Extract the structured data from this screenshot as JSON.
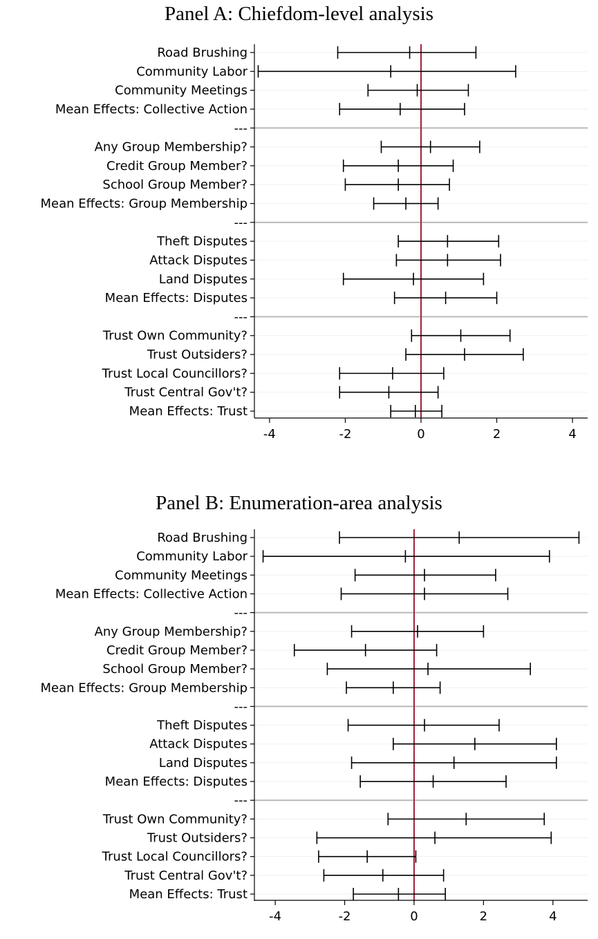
{
  "chart_data": [
    {
      "type": "errorbar",
      "title": "Panel A: Chiefdom-level analysis",
      "xlim": [
        -4.4,
        4.4
      ],
      "xticks": [
        "-4",
        "-2",
        "0",
        "2",
        "4"
      ],
      "xtick_values": [
        -4,
        -2,
        0,
        2,
        4
      ],
      "reference_line_x": 0,
      "reference_line_color": "#a0203c",
      "grid": true,
      "rows": [
        {
          "label": "Road Brushing",
          "estimate": -0.3,
          "low": -2.2,
          "high": 1.45
        },
        {
          "label": "Community Labor",
          "estimate": -0.8,
          "low": -4.3,
          "high": 2.5
        },
        {
          "label": "Community Meetings",
          "estimate": -0.1,
          "low": -1.4,
          "high": 1.25
        },
        {
          "label": "Mean Effects: Collective Action",
          "estimate": -0.55,
          "low": -2.15,
          "high": 1.15
        },
        {
          "label": "---",
          "separator": true
        },
        {
          "label": "Any Group Membership?",
          "estimate": 0.25,
          "low": -1.05,
          "high": 1.55
        },
        {
          "label": "Credit Group Member?",
          "estimate": -0.6,
          "low": -2.05,
          "high": 0.85
        },
        {
          "label": "School Group Member?",
          "estimate": -0.6,
          "low": -2.0,
          "high": 0.75
        },
        {
          "label": "Mean Effects: Group Membership",
          "estimate": -0.4,
          "low": -1.25,
          "high": 0.45
        },
        {
          "label": "---",
          "separator": true
        },
        {
          "label": "Theft Disputes",
          "estimate": 0.7,
          "low": -0.6,
          "high": 2.05
        },
        {
          "label": "Attack Disputes",
          "estimate": 0.7,
          "low": -0.65,
          "high": 2.1
        },
        {
          "label": "Land Disputes",
          "estimate": -0.2,
          "low": -2.05,
          "high": 1.65
        },
        {
          "label": "Mean Effects:  Disputes",
          "estimate": 0.65,
          "low": -0.7,
          "high": 2.0
        },
        {
          "label": "---",
          "separator": true
        },
        {
          "label": "Trust Own Community?",
          "estimate": 1.05,
          "low": -0.25,
          "high": 2.35
        },
        {
          "label": "Trust Outsiders?",
          "estimate": 1.15,
          "low": -0.4,
          "high": 2.7
        },
        {
          "label": "Trust Local Councillors?",
          "estimate": -0.75,
          "low": -2.15,
          "high": 0.6
        },
        {
          "label": "Trust Central Gov't?",
          "estimate": -0.85,
          "low": -2.15,
          "high": 0.45
        },
        {
          "label": "Mean Effects:  Trust",
          "estimate": -0.15,
          "low": -0.8,
          "high": 0.55
        }
      ]
    },
    {
      "type": "errorbar",
      "title": "Panel B: Enumeration-area analysis",
      "xlim": [
        -4.6,
        5.0
      ],
      "xticks": [
        "-4",
        "-2",
        "0",
        "2",
        "4"
      ],
      "xtick_values": [
        -4,
        -2,
        0,
        2,
        4
      ],
      "reference_line_x": 0,
      "reference_line_color": "#a0203c",
      "grid": true,
      "rows": [
        {
          "label": "Road Brushing",
          "estimate": 1.3,
          "low": -2.15,
          "high": 4.75
        },
        {
          "label": "Community Labor",
          "estimate": -0.25,
          "low": -4.35,
          "high": 3.9
        },
        {
          "label": "Community Meetings",
          "estimate": 0.3,
          "low": -1.7,
          "high": 2.35
        },
        {
          "label": "Mean Effects: Collective Action",
          "estimate": 0.3,
          "low": -2.1,
          "high": 2.7
        },
        {
          "label": "---",
          "separator": true
        },
        {
          "label": "Any Group Membership?",
          "estimate": 0.1,
          "low": -1.8,
          "high": 2.0
        },
        {
          "label": "Credit Group Member?",
          "estimate": -1.4,
          "low": -3.45,
          "high": 0.65
        },
        {
          "label": "School Group Member?",
          "estimate": 0.4,
          "low": -2.5,
          "high": 3.35
        },
        {
          "label": "Mean Effects: Group Membership",
          "estimate": -0.6,
          "low": -1.95,
          "high": 0.75
        },
        {
          "label": "---",
          "separator": true
        },
        {
          "label": "Theft Disputes",
          "estimate": 0.3,
          "low": -1.9,
          "high": 2.45
        },
        {
          "label": "Attack Disputes",
          "estimate": 1.75,
          "low": -0.6,
          "high": 4.1
        },
        {
          "label": "Land Disputes",
          "estimate": 1.15,
          "low": -1.8,
          "high": 4.1
        },
        {
          "label": "Mean Effects:  Disputes",
          "estimate": 0.55,
          "low": -1.55,
          "high": 2.65
        },
        {
          "label": "---",
          "separator": true
        },
        {
          "label": "Trust Own Community?",
          "estimate": 1.5,
          "low": -0.75,
          "high": 3.75
        },
        {
          "label": "Trust Outsiders?",
          "estimate": 0.6,
          "low": -2.8,
          "high": 3.95
        },
        {
          "label": "Trust Local Councillors?",
          "estimate": -1.35,
          "low": -2.75,
          "high": 0.05
        },
        {
          "label": "Trust Central Gov't?",
          "estimate": -0.9,
          "low": -2.6,
          "high": 0.85
        },
        {
          "label": "Mean Effects:  Trust",
          "estimate": -0.45,
          "low": -1.75,
          "high": 0.9
        }
      ]
    }
  ]
}
